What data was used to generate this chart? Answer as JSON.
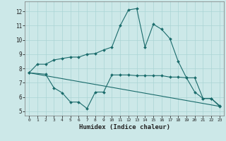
{
  "xlabel": "Humidex (Indice chaleur)",
  "background_color": "#cce8e8",
  "grid_color": "#aad4d4",
  "line_color": "#1a6b6b",
  "xlim": [
    -0.5,
    23.5
  ],
  "ylim": [
    4.7,
    12.7
  ],
  "yticks": [
    5,
    6,
    7,
    8,
    9,
    10,
    11,
    12
  ],
  "xticks": [
    0,
    1,
    2,
    3,
    4,
    5,
    6,
    7,
    8,
    9,
    10,
    11,
    12,
    13,
    14,
    15,
    16,
    17,
    18,
    19,
    20,
    21,
    22,
    23
  ],
  "line1_x": [
    0,
    1,
    2,
    3,
    4,
    5,
    6,
    7,
    8,
    9,
    10,
    11,
    12,
    13,
    14,
    15,
    16,
    17,
    18,
    19,
    20,
    21,
    22,
    23
  ],
  "line1_y": [
    7.7,
    8.3,
    8.3,
    8.6,
    8.7,
    8.8,
    8.8,
    9.0,
    9.05,
    9.3,
    9.5,
    11.0,
    12.1,
    12.2,
    9.5,
    11.1,
    10.75,
    10.1,
    8.5,
    7.35,
    7.35,
    5.9,
    5.9,
    5.4
  ],
  "line2_x": [
    0,
    2,
    3,
    4,
    5,
    6,
    7,
    8,
    9,
    10,
    11,
    12,
    13,
    14,
    15,
    16,
    17,
    18,
    19,
    20,
    21,
    22,
    23
  ],
  "line2_y": [
    7.7,
    7.6,
    6.65,
    6.3,
    5.65,
    5.65,
    5.2,
    6.35,
    6.35,
    7.55,
    7.55,
    7.55,
    7.5,
    7.5,
    7.5,
    7.5,
    7.4,
    7.4,
    7.35,
    6.35,
    5.9,
    5.9,
    5.35
  ],
  "line3_x": [
    0,
    23
  ],
  "line3_y": [
    7.7,
    5.35
  ]
}
